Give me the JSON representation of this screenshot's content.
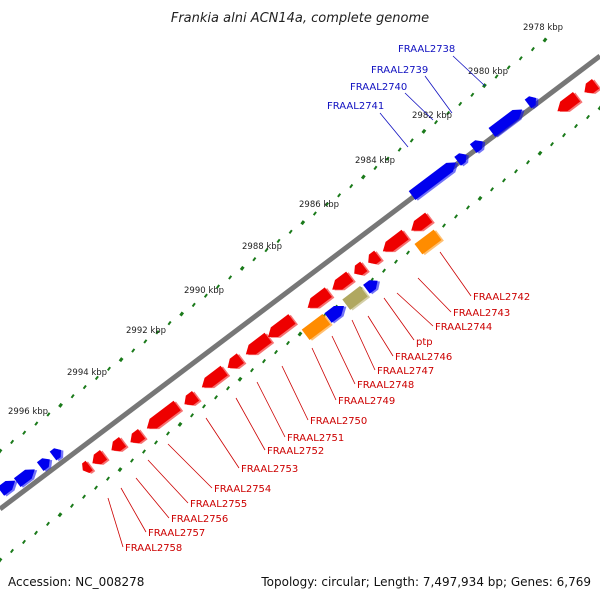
{
  "title": "Frankia alni ACN14a, complete genome",
  "footer": {
    "accession": "Accession: NC_008278",
    "summary": "Topology: circular; Length: 7,497,934 bp; Genes: 6,769"
  },
  "colors": {
    "forward": "#0000ee",
    "reverse": "#ee0000",
    "orange": "#ff8c00",
    "khaki": "#b0a860",
    "backbone": "#777777",
    "tick": "#1a7a1a",
    "forward_label": "#1010c0",
    "reverse_label": "#cc0000"
  },
  "kbp_labels": [
    "2978 kbp",
    "2980 kbp",
    "2982 kbp",
    "2984 kbp",
    "2986 kbp",
    "2988 kbp",
    "2990 kbp",
    "2992 kbp",
    "2994 kbp",
    "2996 kbp"
  ],
  "forward_labels": [
    "FRAAL2738",
    "FRAAL2739",
    "FRAAL2740",
    "FRAAL2741"
  ],
  "reverse_labels": [
    "FRAAL2742",
    "FRAAL2743",
    "FRAAL2744",
    "ptp",
    "FRAAL2746",
    "FRAAL2747",
    "FRAAL2748",
    "FRAAL2749",
    "FRAAL2750",
    "FRAAL2751",
    "FRAAL2752",
    "FRAAL2753",
    "FRAAL2754",
    "FRAAL2755",
    "FRAAL2756",
    "FRAAL2757",
    "FRAAL2758"
  ]
}
